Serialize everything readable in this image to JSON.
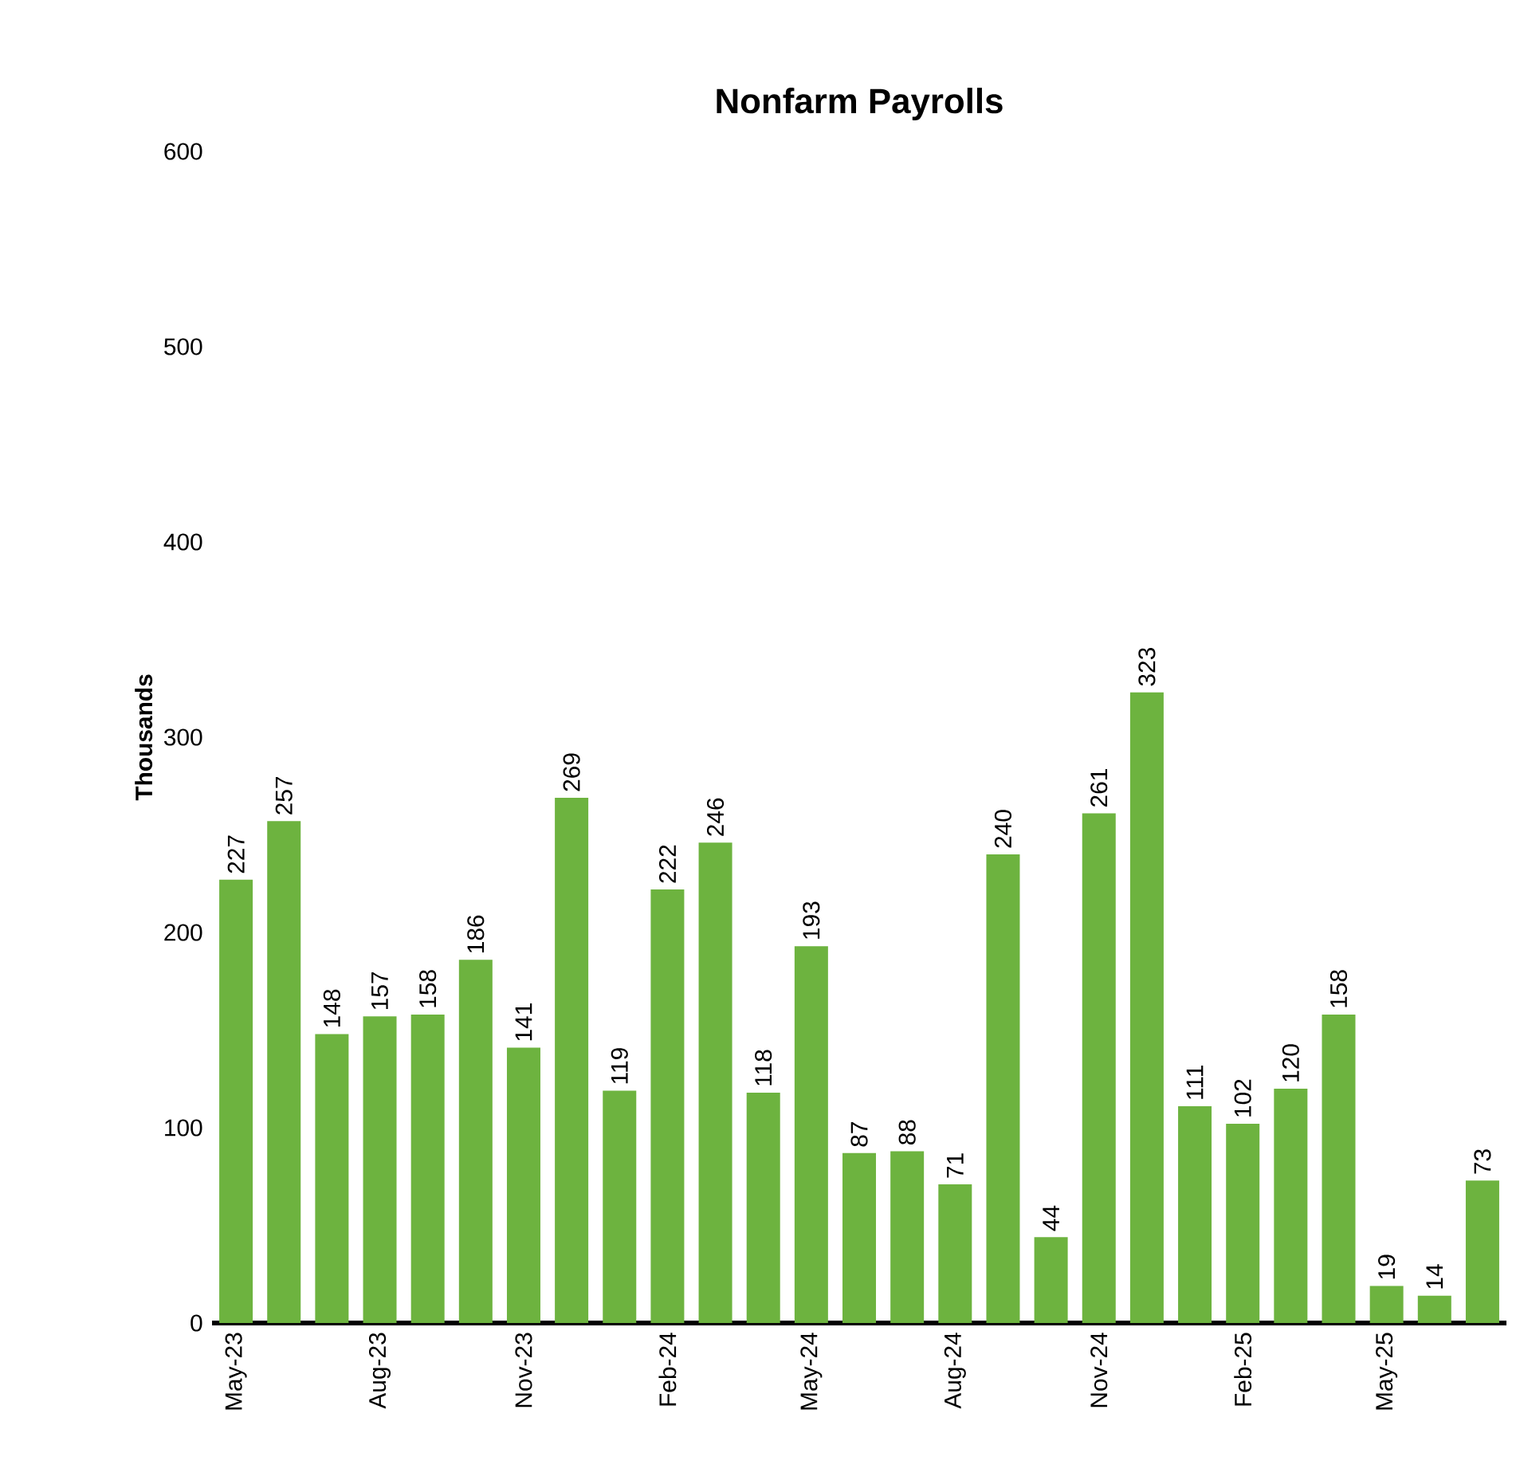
{
  "chart_data": {
    "type": "bar",
    "title": "Nonfarm Payrolls",
    "ylabel": "Thousands",
    "categories": [
      "May-23",
      null,
      null,
      "Aug-23",
      null,
      null,
      "Nov-23",
      null,
      null,
      "Feb-24",
      null,
      null,
      "May-24",
      null,
      null,
      "Aug-24",
      null,
      null,
      "Nov-24",
      null,
      null,
      "Feb-25",
      null,
      null,
      "May-25",
      null,
      null
    ],
    "values": [
      227,
      257,
      148,
      157,
      158,
      186,
      141,
      269,
      119,
      222,
      246,
      118,
      193,
      87,
      88,
      71,
      240,
      44,
      261,
      323,
      111,
      102,
      120,
      158,
      19,
      14,
      73
    ],
    "color": "#6db33f",
    "ylim": [
      0,
      600
    ],
    "yticks": [
      0,
      100,
      200,
      300,
      400,
      500,
      600
    ],
    "data_labels": true
  }
}
